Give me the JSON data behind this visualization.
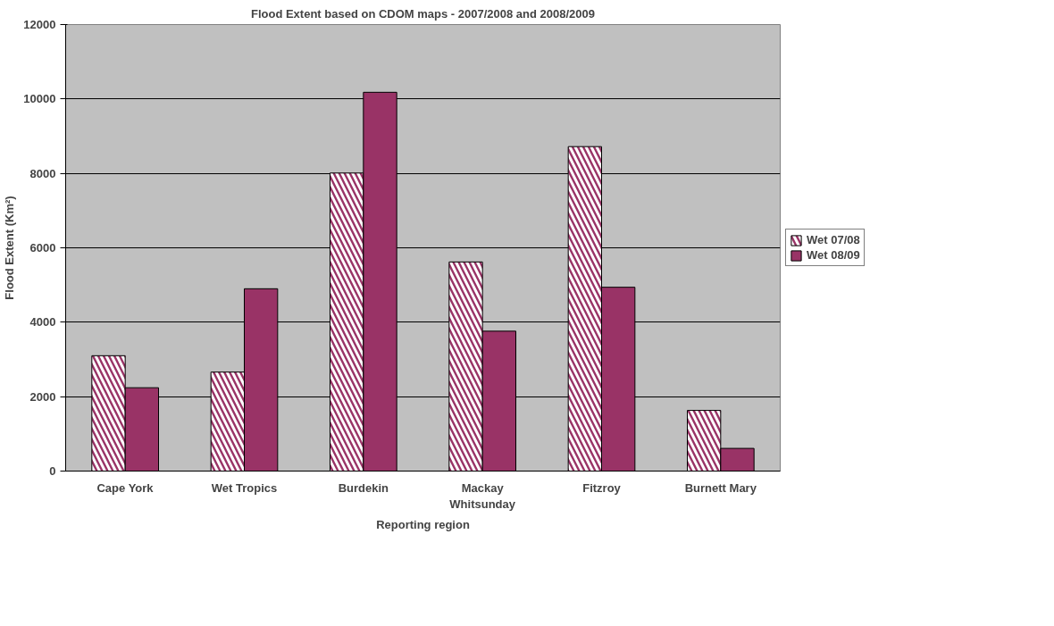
{
  "chart_data": {
    "type": "bar",
    "title": "Flood Extent based on CDOM maps - 2007/2008 and 2008/2009",
    "xlabel": "Reporting region",
    "ylabel": "Flood Extent (Km²)",
    "categories": [
      "Cape York",
      "Wet Tropics",
      "Burdekin",
      "Mackay Whitsunday",
      "Fitzroy",
      "Burnett Mary"
    ],
    "series": [
      {
        "name": "Wet 07/08",
        "color": "#993366",
        "values": [
          3100,
          2660,
          8010,
          5620,
          8720,
          1630
        ]
      },
      {
        "name": "Wet 08/09",
        "color": "#993366",
        "values": [
          2240,
          4900,
          10180,
          3760,
          4940,
          610
        ]
      }
    ],
    "ylim": [
      0,
      12000
    ],
    "yticks": [
      0,
      2000,
      4000,
      6000,
      8000,
      10000,
      12000
    ],
    "grid": "y",
    "legend": "right"
  }
}
